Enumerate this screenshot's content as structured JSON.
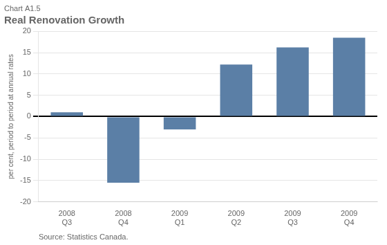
{
  "chart_data": {
    "type": "bar",
    "title": "Real Renovation Growth",
    "subtitle": "Chart A1.5",
    "ylabel": "per cent, period to period at annual rates",
    "annotations": [
      "Source: Statistics Canada."
    ],
    "categories": [
      "2008\nQ3",
      "2008\nQ4",
      "2009\nQ1",
      "2009\nQ2",
      "2009\nQ3",
      "2009\nQ4"
    ],
    "values": [
      1.0,
      -15.5,
      -3.0,
      12.2,
      16.2,
      18.5
    ],
    "color": "#5b7fa6",
    "ylim": [
      -20,
      20
    ],
    "yticks": [
      -20,
      -15,
      -10,
      -5,
      0,
      5,
      10,
      15,
      20
    ],
    "grid": true
  }
}
